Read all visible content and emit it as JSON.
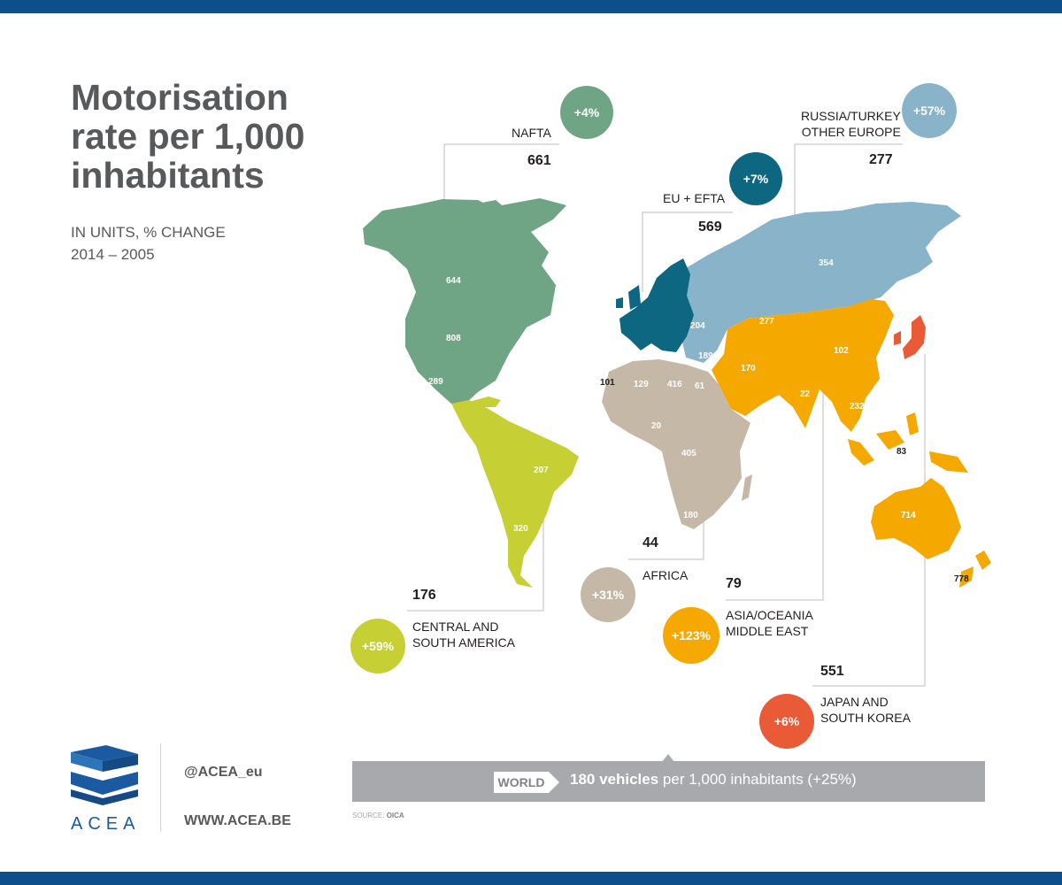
{
  "title": "Motorisation rate per 1,000 inhabitants",
  "subtitle_line1": "IN UNITS, % CHANGE",
  "subtitle_line2": "2014 – 2005",
  "colors": {
    "nafta": "#6fa585",
    "eu_efta": "#0e6780",
    "russia_turkey": "#89b3c8",
    "africa": "#c5b8a6",
    "asia": "#f5a800",
    "japan_korea": "#e95a36",
    "south_america": "#c6d034",
    "brand": "#0d4f8b"
  },
  "regions": {
    "nafta": {
      "label": "NAFTA",
      "value": "661",
      "change": "+4%"
    },
    "russia": {
      "label_line1": "RUSSIA/TURKEY",
      "label_line2": "OTHER EUROPE",
      "value": "277",
      "change": "+57%"
    },
    "eu": {
      "label": "EU + EFTA",
      "value": "569",
      "change": "+7%"
    },
    "africa": {
      "label": "AFRICA",
      "value": "44",
      "change": "+31%"
    },
    "samerica": {
      "label_line1": "CENTRAL AND",
      "label_line2": "SOUTH AMERICA",
      "value": "176",
      "change": "+59%"
    },
    "asia": {
      "label_line1": "ASIA/OCEANIA",
      "label_line2": "MIDDLE EAST",
      "value": "79",
      "change": "+123%"
    },
    "japan": {
      "label_line1": "JAPAN AND",
      "label_line2": "SOUTH KOREA",
      "value": "551",
      "change": "+6%"
    }
  },
  "countries": {
    "canada": "644",
    "usa": "808",
    "mexico": "289",
    "brazil": "207",
    "argentina": "320",
    "russia": "354",
    "ukraine": "204",
    "turkey": "189",
    "morocco": "101",
    "algeria": "129",
    "libya": "416",
    "egypt": "61",
    "nigeria": "20",
    "angola": "405",
    "south_africa": "180",
    "iran": "170",
    "kazakhstan": "277",
    "china": "102",
    "india": "22",
    "thailand": "232",
    "indonesia": "83",
    "australia": "714",
    "new_zealand": "778"
  },
  "world": {
    "tab": "WORLD",
    "bold": "180 vehicles",
    "rest": " per 1,000 inhabitants (+25%)"
  },
  "source_label": "SOURCE:",
  "source_value": "OICA",
  "logo": "ACEA",
  "twitter": "@ACEA_eu",
  "website": "WWW.ACEA.BE"
}
